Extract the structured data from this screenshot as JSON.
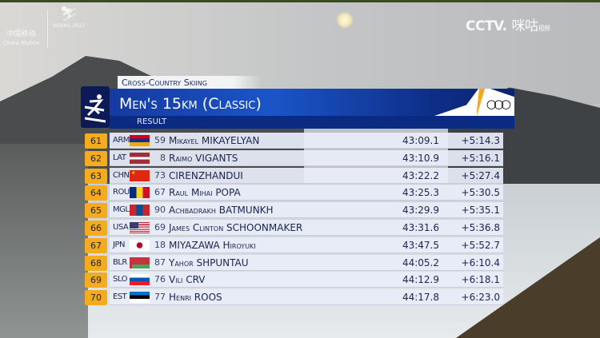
{
  "broadcast": {
    "left_logo": {
      "sponsor": "中国移动",
      "sponsor_en": "China Mobile",
      "games": "BEIJING 2022"
    },
    "right_logo": {
      "channel": "CCTV.",
      "platform": "咪咕",
      "platform_sub": "视频"
    }
  },
  "header": {
    "discipline": "Cross-Country Skiing",
    "event": "Men's 15km (Classic)",
    "subtitle": "RESULT",
    "sport_icon": "cross-country-skier-icon",
    "olympic_rings": "olympic-rings-icon"
  },
  "colors": {
    "rank_badge": "#f4ac1e",
    "title_bar": "#1a55c8",
    "row_bg": "#e8edf7"
  },
  "results": [
    {
      "rank": "61",
      "noc": "ARM",
      "bib": "59",
      "name": "Mikayel MIKAYELYAN",
      "time": "43:09.1",
      "gap": "+5:14.3"
    },
    {
      "rank": "62",
      "noc": "LAT",
      "bib": "8",
      "name": "Raimo VIGANTS",
      "time": "43:10.9",
      "gap": "+5:16.1"
    },
    {
      "rank": "63",
      "noc": "CHN",
      "bib": "73",
      "name": "CIRENZHANDUI",
      "time": "43:22.2",
      "gap": "+5:27.4"
    },
    {
      "rank": "64",
      "noc": "ROU",
      "bib": "67",
      "name": "Raul Mihai POPA",
      "time": "43:25.3",
      "gap": "+5:30.5"
    },
    {
      "rank": "65",
      "noc": "MGL",
      "bib": "90",
      "name": "Achbadrakh BATMUNKH",
      "time": "43:29.9",
      "gap": "+5:35.1"
    },
    {
      "rank": "66",
      "noc": "USA",
      "bib": "69",
      "name": "James Clinton SCHOONMAKER",
      "time": "43:31.6",
      "gap": "+5:36.8"
    },
    {
      "rank": "67",
      "noc": "JPN",
      "bib": "18",
      "name": "MIYAZAWA Hiroyuki",
      "time": "43:47.5",
      "gap": "+5:52.7"
    },
    {
      "rank": "68",
      "noc": "BLR",
      "bib": "87",
      "name": "Yahor SHPUNTAU",
      "time": "44:05.2",
      "gap": "+6:10.4"
    },
    {
      "rank": "69",
      "noc": "SLO",
      "bib": "76",
      "name": "Vili CRV",
      "time": "44:12.9",
      "gap": "+6:18.1"
    },
    {
      "rank": "70",
      "noc": "EST",
      "bib": "77",
      "name": "Henri ROOS",
      "time": "44:17.8",
      "gap": "+6:23.0"
    }
  ]
}
